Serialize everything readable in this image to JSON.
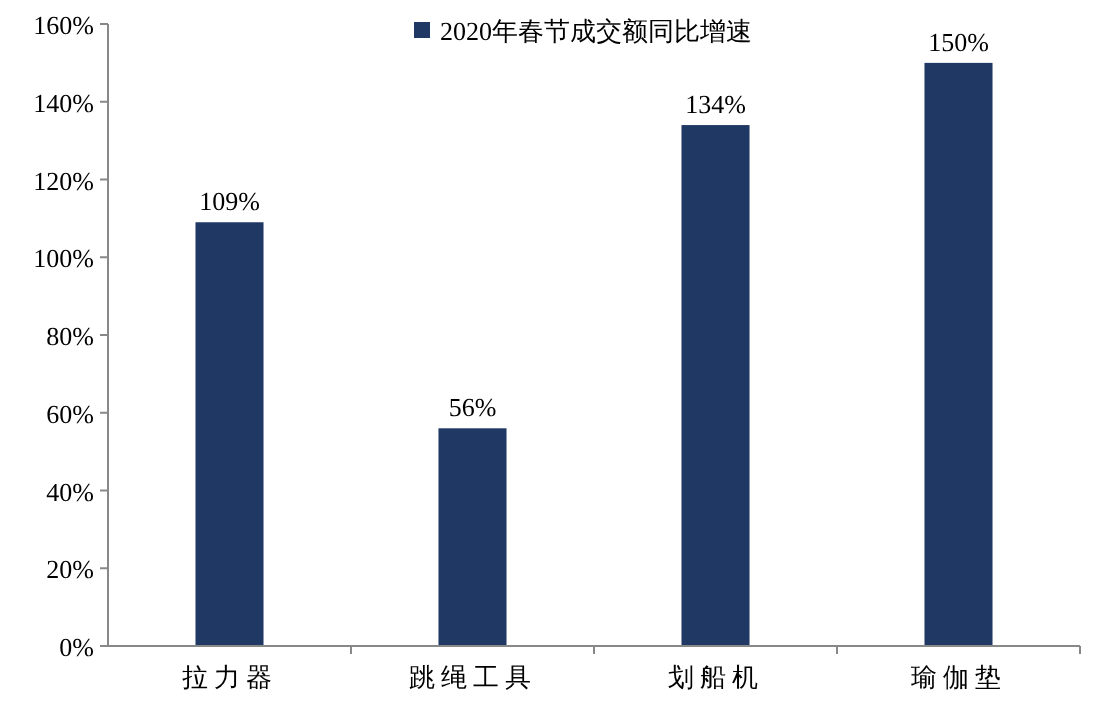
{
  "chart_data": {
    "type": "bar",
    "categories": [
      "拉力器",
      "跳绳工具",
      "划船机",
      "瑜伽垫"
    ],
    "series": [
      {
        "name": "2020年春节成交额同比增速",
        "color": "#1f3864",
        "values": [
          109,
          56,
          134,
          150
        ],
        "value_labels": [
          "109%",
          "56%",
          "134%",
          "150%"
        ]
      }
    ],
    "ylim": [
      0,
      160
    ],
    "yticks": [
      {
        "value": 0,
        "label": "0%"
      },
      {
        "value": 20,
        "label": "20%"
      },
      {
        "value": 40,
        "label": "40%"
      },
      {
        "value": 60,
        "label": "60%"
      },
      {
        "value": 80,
        "label": "80%"
      },
      {
        "value": 100,
        "label": "100%"
      },
      {
        "value": 120,
        "label": "120%"
      },
      {
        "value": 140,
        "label": "140%"
      },
      {
        "value": 160,
        "label": "160%"
      }
    ],
    "grid": false,
    "legend": "top"
  }
}
